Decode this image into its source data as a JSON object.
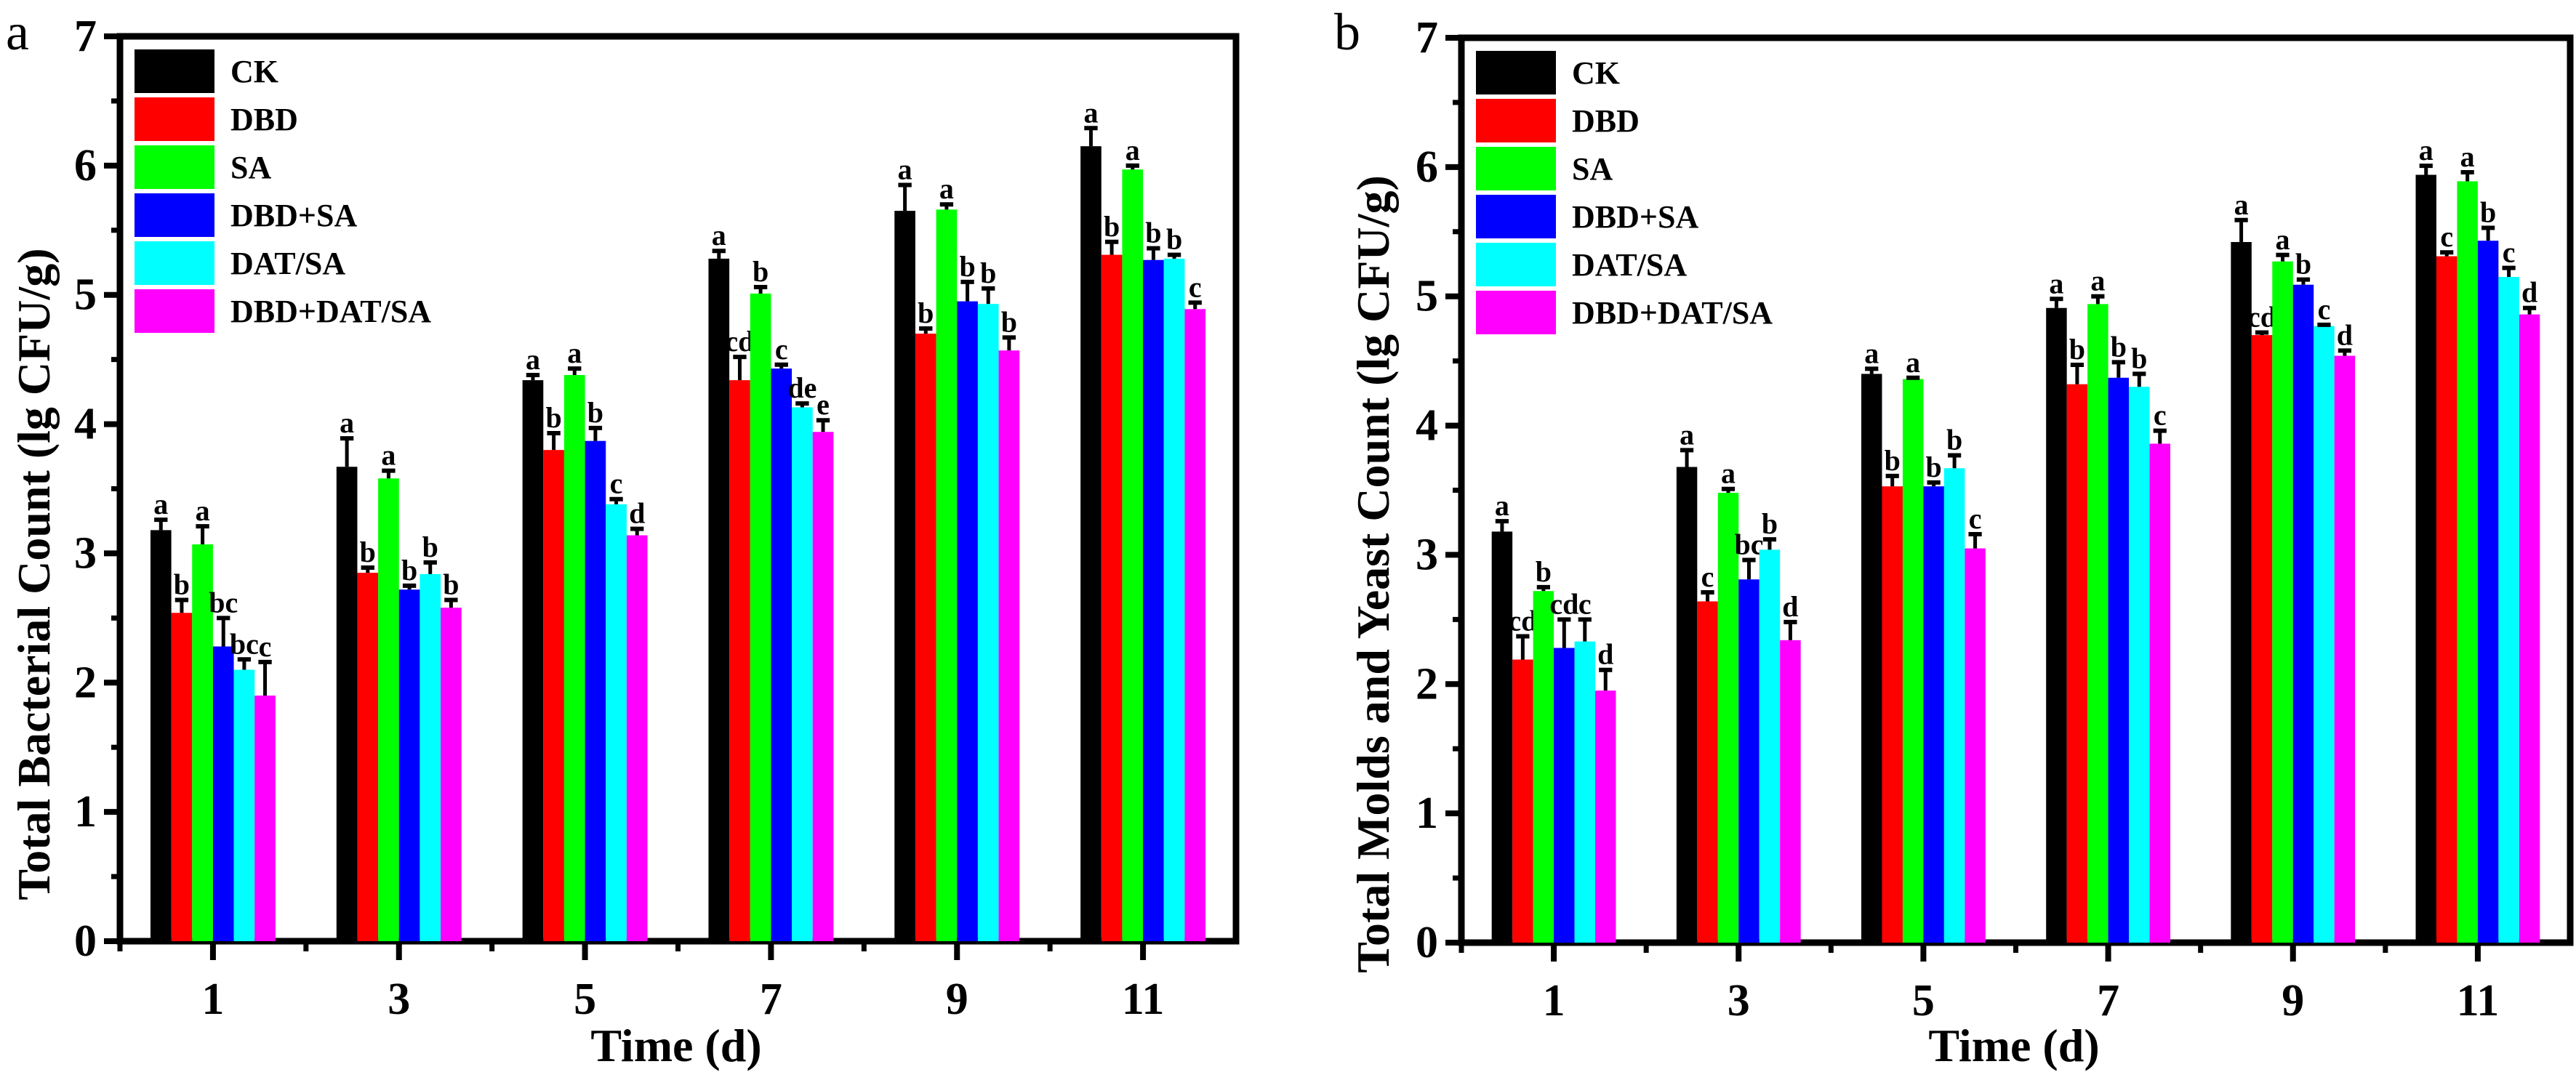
{
  "chart_data": [
    {
      "panel": "a",
      "type": "bar",
      "title": "",
      "xlabel": "Time (d)",
      "ylabel": "Total Bacterial Count (lg CFU/g)",
      "ylim": [
        0,
        7
      ],
      "yticks": [
        0,
        1,
        2,
        3,
        4,
        5,
        6,
        7
      ],
      "categories": [
        "1",
        "3",
        "5",
        "7",
        "9",
        "11"
      ],
      "legend_position": "top-left",
      "grid": false,
      "series": [
        {
          "name": "CK",
          "color": "#000000",
          "values": [
            3.18,
            3.67,
            4.34,
            5.28,
            5.65,
            6.15
          ],
          "errors": [
            0.08,
            0.22,
            0.04,
            0.06,
            0.2,
            0.14
          ],
          "labels": [
            "a",
            "a",
            "a",
            "a",
            "a",
            "a"
          ]
        },
        {
          "name": "DBD",
          "color": "#ff0000",
          "values": [
            2.54,
            2.85,
            3.8,
            4.34,
            4.7,
            5.31
          ],
          "errors": [
            0.1,
            0.04,
            0.13,
            0.18,
            0.04,
            0.1
          ],
          "labels": [
            "b",
            "b",
            "b",
            "cd",
            "b",
            "b"
          ]
        },
        {
          "name": "SA",
          "color": "#00ff00",
          "values": [
            3.07,
            3.58,
            4.38,
            5.01,
            5.66,
            5.97
          ],
          "errors": [
            0.14,
            0.06,
            0.05,
            0.05,
            0.04,
            0.03
          ],
          "labels": [
            "a",
            "a",
            "a",
            "b",
            "a",
            "a"
          ]
        },
        {
          "name": "DBD+SA",
          "color": "#0000ff",
          "values": [
            2.28,
            2.72,
            3.87,
            4.43,
            4.95,
            5.27
          ],
          "errors": [
            0.22,
            0.03,
            0.1,
            0.03,
            0.15,
            0.09
          ],
          "labels": [
            "bc",
            "b",
            "b",
            "c",
            "b",
            "b"
          ]
        },
        {
          "name": "DAT/SA",
          "color": "#00ffff",
          "values": [
            2.1,
            2.84,
            3.38,
            4.13,
            4.93,
            5.28
          ],
          "errors": [
            0.08,
            0.09,
            0.04,
            0.03,
            0.12,
            0.03
          ],
          "labels": [
            "bc",
            "b",
            "c",
            "de",
            "b",
            "b"
          ]
        },
        {
          "name": "DBD+DAT/SA",
          "color": "#ff00ff",
          "values": [
            1.9,
            2.58,
            3.14,
            3.94,
            4.57,
            4.89
          ],
          "errors": [
            0.26,
            0.06,
            0.05,
            0.09,
            0.1,
            0.05
          ],
          "labels": [
            "c",
            "b",
            "d",
            "e",
            "b",
            "c"
          ]
        }
      ]
    },
    {
      "panel": "b",
      "type": "bar",
      "title": "",
      "xlabel": "Time (d)",
      "ylabel": "Total Molds and Yeast Count (lg CFU/g)",
      "ylim": [
        0,
        7
      ],
      "yticks": [
        0,
        1,
        2,
        3,
        4,
        5,
        6,
        7
      ],
      "categories": [
        "1",
        "3",
        "5",
        "7",
        "9",
        "11"
      ],
      "legend_position": "top-left",
      "grid": false,
      "series": [
        {
          "name": "CK",
          "color": "#000000",
          "values": [
            3.18,
            3.68,
            4.4,
            4.91,
            5.42,
            5.94
          ],
          "errors": [
            0.08,
            0.13,
            0.04,
            0.07,
            0.17,
            0.07
          ],
          "labels": [
            "a",
            "a",
            "a",
            "a",
            "a",
            "a"
          ]
        },
        {
          "name": "DBD",
          "color": "#ff0000",
          "values": [
            2.19,
            2.64,
            3.53,
            4.32,
            4.7,
            5.31
          ],
          "errors": [
            0.18,
            0.07,
            0.08,
            0.15,
            0.02,
            0.03
          ],
          "labels": [
            "cd",
            "c",
            "b",
            "b",
            "cd",
            "c"
          ]
        },
        {
          "name": "SA",
          "color": "#00ff00",
          "values": [
            2.72,
            3.48,
            4.36,
            4.94,
            5.27,
            5.89
          ],
          "errors": [
            0.03,
            0.03,
            0.01,
            0.06,
            0.05,
            0.07
          ],
          "labels": [
            "b",
            "a",
            "a",
            "a",
            "a",
            "a"
          ]
        },
        {
          "name": "DBD+SA",
          "color": "#0000ff",
          "values": [
            2.28,
            2.81,
            3.53,
            4.37,
            5.09,
            5.43
          ],
          "errors": [
            0.22,
            0.15,
            0.03,
            0.12,
            0.04,
            0.1
          ],
          "labels": [
            "cd",
            "bc",
            "b",
            "b",
            "b",
            "b"
          ]
        },
        {
          "name": "DAT/SA",
          "color": "#00ffff",
          "values": [
            2.33,
            3.04,
            3.67,
            4.3,
            4.77,
            5.15
          ],
          "errors": [
            0.17,
            0.08,
            0.1,
            0.1,
            0.01,
            0.07
          ],
          "labels": [
            "c",
            "b",
            "b",
            "b",
            "c",
            "c"
          ]
        },
        {
          "name": "DBD+DAT/SA",
          "color": "#ff00ff",
          "values": [
            1.95,
            2.34,
            3.05,
            3.86,
            4.54,
            4.86
          ],
          "errors": [
            0.16,
            0.14,
            0.11,
            0.1,
            0.04,
            0.05
          ],
          "labels": [
            "d",
            "d",
            "c",
            "c",
            "d",
            "d"
          ]
        }
      ]
    }
  ]
}
